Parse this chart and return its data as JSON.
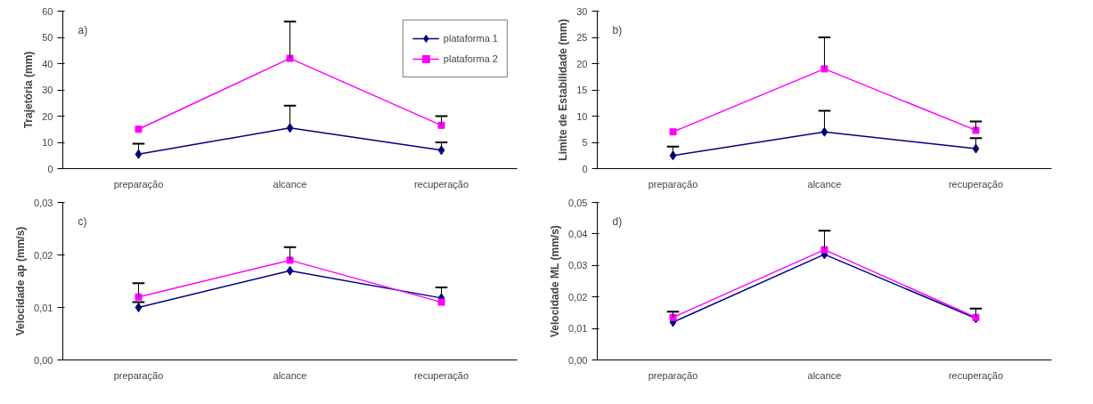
{
  "chart_data": [
    {
      "type": "line",
      "ylabel": "Trajetória (mm)",
      "annotations": [
        "a)"
      ],
      "categories": [
        "preparação",
        "alcance",
        "recuperação"
      ],
      "ylim": [
        0,
        60
      ],
      "yticks": [
        0,
        10,
        20,
        30,
        40,
        50,
        60
      ],
      "grid": false,
      "legend": "top right",
      "series": [
        {
          "name": "plataforma 1",
          "color": "#000080",
          "marker": "diamond",
          "values": [
            5.5,
            15.5,
            7
          ],
          "errors": [
            [
              5.5,
              9.5
            ],
            [
              15.5,
              24
            ],
            [
              7,
              10
            ]
          ]
        },
        {
          "name": "plataforma 2",
          "color": "#ff00ff",
          "marker": "square",
          "values": [
            15,
            42,
            16.5
          ],
          "errors": [
            null,
            [
              42,
              56
            ],
            [
              16.5,
              20
            ]
          ]
        }
      ]
    },
    {
      "type": "line",
      "ylabel": "Limite de Estabilidade (mm)",
      "annotations": [
        "b)"
      ],
      "categories": [
        "preparação",
        "alcance",
        "recuperação"
      ],
      "ylim": [
        0,
        30
      ],
      "yticks": [
        0,
        5,
        10,
        15,
        20,
        25,
        30
      ],
      "grid": false,
      "legend": false,
      "series": [
        {
          "color": "#000080",
          "marker": "diamond",
          "values": [
            2.5,
            7,
            3.8
          ],
          "errors": [
            [
              2.5,
              4.2
            ],
            [
              7,
              11
            ],
            [
              3.8,
              5.8
            ]
          ]
        },
        {
          "color": "#ff00ff",
          "marker": "square",
          "values": [
            7,
            19,
            7.3
          ],
          "errors": [
            null,
            [
              19,
              25
            ],
            [
              7.3,
              9
            ]
          ]
        }
      ]
    },
    {
      "type": "line",
      "ylabel": "Velocidade ap (mm/s)",
      "annotations": [
        "c)"
      ],
      "categories": [
        "preparação",
        "alcance",
        "recuperação"
      ],
      "ylim": [
        0,
        0.03
      ],
      "yticks": [
        {
          "value": 0,
          "label": "0,00"
        },
        {
          "value": 0.01,
          "label": "0,01"
        },
        {
          "value": 0.02,
          "label": "0,02"
        },
        {
          "value": 0.03,
          "label": "0,03"
        }
      ],
      "grid": false,
      "legend": false,
      "series": [
        {
          "color": "#000080",
          "marker": "diamond",
          "values": [
            0.01,
            0.017,
            0.0118
          ],
          "errors": [
            [
              0.01,
              0.011
            ],
            null,
            [
              0.0118,
              0.0138
            ]
          ]
        },
        {
          "color": "#ff00ff",
          "marker": "square",
          "values": [
            0.012,
            0.019,
            0.011
          ],
          "errors": [
            [
              0.012,
              0.0146
            ],
            [
              0.019,
              0.0215
            ],
            null
          ]
        }
      ]
    },
    {
      "type": "line",
      "ylabel": "Velocidade ML (mm/s)",
      "annotations": [
        "d)"
      ],
      "categories": [
        "preparação",
        "alcance",
        "recuperação"
      ],
      "ylim": [
        0,
        0.05
      ],
      "yticks": [
        {
          "value": 0,
          "label": "0,00"
        },
        {
          "value": 0.01,
          "label": "0,01"
        },
        {
          "value": 0.02,
          "label": "0,02"
        },
        {
          "value": 0.03,
          "label": "0,03"
        },
        {
          "value": 0.04,
          "label": "0,04"
        },
        {
          "value": 0.05,
          "label": "0,05"
        }
      ],
      "grid": false,
      "legend": false,
      "series": [
        {
          "color": "#000080",
          "marker": "diamond",
          "values": [
            0.012,
            0.0335,
            0.0132
          ]
        },
        {
          "color": "#ff00ff",
          "marker": "square",
          "values": [
            0.0135,
            0.035,
            0.0135
          ],
          "errors": [
            [
              0.0135,
              0.0153
            ],
            [
              0.035,
              0.041
            ],
            [
              0.0135,
              0.0163
            ]
          ]
        }
      ]
    }
  ]
}
